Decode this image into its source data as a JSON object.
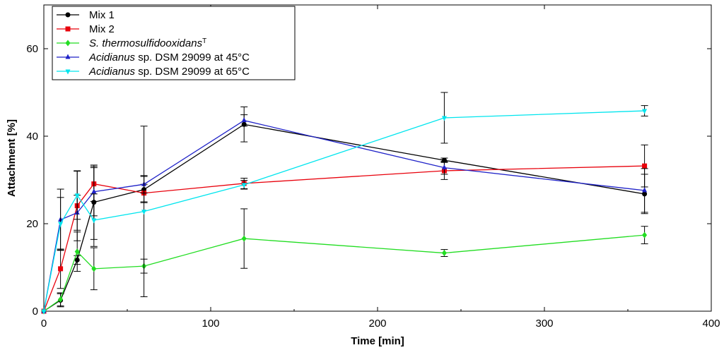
{
  "chart_data": {
    "type": "line",
    "xlabel": "Time [min]",
    "ylabel": "Attachment [%]",
    "xlim": [
      0,
      400
    ],
    "ylim": [
      0,
      70
    ],
    "xticks": [
      "0",
      "100",
      "200",
      "300",
      "400"
    ],
    "yticks": [
      "0",
      "20",
      "40",
      "60"
    ],
    "x": [
      0,
      10,
      20,
      30,
      60,
      120,
      240,
      360
    ],
    "legend_position": "top-left",
    "series": [
      {
        "name": "Mix 1",
        "legend_parts": [
          {
            "text": "Mix 1",
            "italic": false
          }
        ],
        "color": "#000000",
        "marker": "circle",
        "values": [
          0,
          2.5,
          11.7,
          24.9,
          27.8,
          42.7,
          34.5,
          26.8
        ],
        "errors": [
          0,
          1.5,
          1.0,
          8.5,
          3.0,
          4.0,
          0.5,
          4.5
        ]
      },
      {
        "name": "Mix 2",
        "legend_parts": [
          {
            "text": "Mix 2",
            "italic": false
          }
        ],
        "color": "#e8000b",
        "marker": "square",
        "values": [
          0,
          9.7,
          24.1,
          29.1,
          27.0,
          29.2,
          32.1,
          33.2
        ],
        "errors": [
          0,
          4.5,
          8.0,
          4.0,
          2.0,
          1.2,
          2.0,
          4.8
        ]
      },
      {
        "name": "S. thermosulfidooxidans T",
        "legend_parts": [
          {
            "text": "S. thermosulfidooxidans",
            "italic": true
          },
          {
            "text": "T",
            "italic": false,
            "sup": true
          }
        ],
        "color": "#22dd22",
        "marker": "diamond",
        "values": [
          0,
          2.7,
          13.6,
          9.7,
          10.3,
          16.6,
          13.3,
          17.4
        ],
        "errors": [
          0,
          1.5,
          4.5,
          4.8,
          1.6,
          6.8,
          0.8,
          2.0
        ]
      },
      {
        "name": "Acidianus sp. DSM 29099 at 45°C",
        "legend_parts": [
          {
            "text": "Acidianus",
            "italic": true
          },
          {
            "text": " sp. DSM 29099 at 45°C",
            "italic": false
          }
        ],
        "color": "#1f22c8",
        "marker": "triangle-up",
        "values": [
          0,
          20.9,
          22.5,
          27.3,
          29.0,
          43.6,
          32.8,
          27.6
        ],
        "errors": [
          0,
          7.0,
          4.0,
          5.5,
          2.0,
          1.3,
          1.5,
          5.0
        ]
      },
      {
        "name": "Acidianus sp. DSM 29099 at 65°C",
        "legend_parts": [
          {
            "text": "Acidianus",
            "italic": true
          },
          {
            "text": " sp. DSM 29099 at 65°C",
            "italic": false
          }
        ],
        "color": "#00e5ee",
        "marker": "triangle-down",
        "values": [
          0,
          20.0,
          26.5,
          20.8,
          22.8,
          28.9,
          44.2,
          45.8
        ],
        "errors": [
          0,
          6.0,
          5.5,
          6.0,
          19.5,
          1.0,
          5.8,
          1.2
        ]
      }
    ]
  }
}
